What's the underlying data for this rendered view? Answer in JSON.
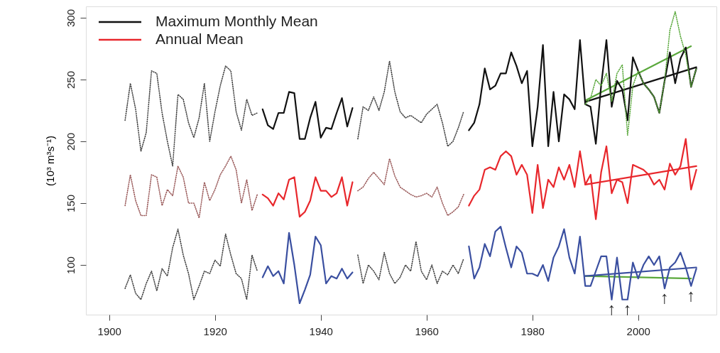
{
  "chart_data": {
    "type": "line",
    "ylabel": "(10³ m³s⁻¹)",
    "xlim": [
      1895.6,
      2014.8
    ],
    "ylim": [
      59.8,
      309.2
    ],
    "xticks": [
      1900,
      1920,
      1940,
      1960,
      1980,
      2000
    ],
    "yticks": [
      100,
      150,
      200,
      250,
      300
    ],
    "grid": false,
    "legend": "top left",
    "series": [
      {
        "name": "Maximum Monthly Mean",
        "color": "#111111",
        "line_style": "solid",
        "x": [
          1929,
          1930,
          1931,
          1932,
          1933,
          1934,
          1935,
          1936,
          1937,
          1938,
          1939,
          1940,
          1941,
          1942,
          1943,
          1944,
          1945,
          1946
        ],
        "values": [
          226,
          213,
          210,
          223,
          223,
          240,
          239,
          202,
          202,
          219,
          232,
          203,
          211,
          210,
          223,
          235,
          212,
          227
        ]
      },
      {
        "name": "Annual Mean",
        "color": "#e8272c",
        "line_style": "solid",
        "x": [
          1929,
          1930,
          1931,
          1932,
          1933,
          1934,
          1935,
          1936,
          1937,
          1938,
          1939,
          1940,
          1941,
          1942,
          1943,
          1944,
          1945,
          1946
        ],
        "values": [
          157,
          154,
          148,
          158,
          153,
          169,
          171,
          139,
          143,
          152,
          171,
          160,
          160,
          155,
          158,
          171,
          148,
          167
        ]
      },
      {
        "color": "#3a4fa0",
        "line_style": "solid",
        "x": [
          1929,
          1930,
          1931,
          1932,
          1933,
          1934,
          1935,
          1936,
          1937,
          1938,
          1939,
          1940,
          1941,
          1942,
          1943,
          1944,
          1945,
          1946
        ],
        "values": [
          90,
          99,
          91,
          95,
          85,
          126,
          100,
          69,
          80,
          92,
          123,
          116,
          85,
          91,
          89,
          97,
          89,
          94
        ]
      },
      {
        "color": "#444444",
        "line_style": "dotted",
        "x": [
          1903,
          1904,
          1905,
          1906,
          1907,
          1908,
          1909,
          1910,
          1911,
          1912,
          1913,
          1914,
          1915,
          1916,
          1917,
          1918,
          1919,
          1920,
          1921,
          1922,
          1923,
          1924,
          1925,
          1926,
          1927,
          1928
        ],
        "values": [
          217,
          247,
          226,
          192,
          207,
          257,
          255,
          223,
          200,
          180,
          238,
          234,
          215,
          203,
          219,
          247,
          200,
          224,
          245,
          261,
          257,
          224,
          209,
          234,
          221,
          223
        ]
      },
      {
        "color": "#9a5a5a",
        "line_style": "dotted",
        "x": [
          1903,
          1904,
          1905,
          1906,
          1907,
          1908,
          1909,
          1910,
          1911,
          1912,
          1913,
          1914,
          1915,
          1916,
          1917,
          1918,
          1919,
          1920,
          1921,
          1922,
          1923,
          1924,
          1925,
          1926,
          1927,
          1928
        ],
        "values": [
          148,
          173,
          152,
          140,
          140,
          173,
          171,
          148,
          161,
          156,
          180,
          171,
          150,
          150,
          138,
          167,
          152,
          161,
          173,
          180,
          188,
          177,
          150,
          169,
          144,
          157
        ]
      },
      {
        "color": "#444444",
        "line_style": "dotted",
        "x": [
          1903,
          1904,
          1905,
          1906,
          1907,
          1908,
          1909,
          1910,
          1911,
          1912,
          1913,
          1914,
          1915,
          1916,
          1917,
          1918,
          1919,
          1920,
          1921,
          1922,
          1923,
          1924,
          1925,
          1926,
          1927,
          1928
        ],
        "values": [
          81,
          92,
          77,
          72,
          85,
          95,
          79,
          97,
          91,
          114,
          129,
          108,
          93,
          72,
          83,
          95,
          93,
          104,
          99,
          125,
          108,
          93,
          89,
          72,
          108,
          95
        ]
      },
      {
        "color": "#444444",
        "line_style": "dotted",
        "x": [
          1947,
          1948,
          1949,
          1950,
          1951,
          1952,
          1953,
          1954,
          1955,
          1956,
          1957,
          1958,
          1959,
          1960,
          1961,
          1962,
          1963,
          1964,
          1965,
          1966,
          1967
        ],
        "values": [
          202,
          228,
          225,
          236,
          225,
          240,
          265,
          240,
          224,
          219,
          221,
          218,
          215,
          222,
          226,
          230,
          215,
          196,
          200,
          211,
          224
        ]
      },
      {
        "color": "#9a5a5a",
        "line_style": "dotted",
        "x": [
          1947,
          1948,
          1949,
          1950,
          1951,
          1952,
          1953,
          1954,
          1955,
          1956,
          1957,
          1958,
          1959,
          1960,
          1961,
          1962,
          1963,
          1964,
          1965,
          1966,
          1967
        ],
        "values": [
          160,
          163,
          170,
          175,
          170,
          165,
          186,
          172,
          163,
          160,
          157,
          155,
          156,
          158,
          155,
          163,
          150,
          140,
          143,
          147,
          157
        ]
      },
      {
        "color": "#444444",
        "line_style": "dotted",
        "x": [
          1947,
          1948,
          1949,
          1950,
          1951,
          1952,
          1953,
          1954,
          1955,
          1956,
          1957,
          1958,
          1959,
          1960,
          1961,
          1962,
          1963,
          1964,
          1965,
          1966,
          1967
        ],
        "values": [
          108,
          85,
          100,
          95,
          88,
          110,
          93,
          85,
          90,
          100,
          95,
          119,
          95,
          88,
          100,
          85,
          95,
          92,
          100,
          93,
          105
        ]
      },
      {
        "color": "#5aa83c",
        "line_style": "dotted",
        "x": [
          1990,
          1991,
          1992,
          1993,
          1994,
          1995,
          1996,
          1997,
          1998,
          1999,
          2000,
          2001,
          2002,
          2003,
          2004,
          2005,
          2006,
          2007,
          2008,
          2009,
          2010,
          2011
        ],
        "values": [
          230,
          235,
          250,
          245,
          255,
          232,
          255,
          262,
          205,
          245,
          257,
          247,
          242,
          236,
          223,
          249,
          290,
          305,
          285,
          270,
          244,
          259
        ]
      },
      {
        "color": "#111111",
        "line_style": "solid",
        "x": [
          1968,
          1969,
          1970,
          1971,
          1972,
          1973,
          1974,
          1975,
          1976,
          1977,
          1978,
          1979,
          1980,
          1981,
          1982,
          1983,
          1984,
          1985,
          1986,
          1987,
          1988,
          1989,
          1990,
          1991,
          1992,
          1993,
          1994,
          1995,
          1996,
          1997,
          1998,
          1999,
          2000,
          2001,
          2002,
          2003,
          2004,
          2005,
          2006,
          2007,
          2008,
          2009,
          2010,
          2011
        ],
        "values": [
          209,
          215,
          230,
          259,
          242,
          245,
          255,
          255,
          272,
          261,
          247,
          257,
          196,
          228,
          278,
          196,
          240,
          200,
          238,
          234,
          226,
          282,
          230,
          228,
          198,
          245,
          282,
          228,
          249,
          242,
          217,
          268,
          257,
          247,
          242,
          236,
          223,
          249,
          272,
          247,
          267,
          276,
          244,
          259
        ]
      },
      {
        "color": "#e8272c",
        "line_style": "solid",
        "x": [
          1968,
          1969,
          1970,
          1971,
          1972,
          1973,
          1974,
          1975,
          1976,
          1977,
          1978,
          1979,
          1980,
          1981,
          1982,
          1983,
          1984,
          1985,
          1986,
          1987,
          1988,
          1989,
          1990,
          1991,
          1992,
          1993,
          1994,
          1995,
          1996,
          1997,
          1998,
          1999,
          2000,
          2001,
          2002,
          2003,
          2004,
          2005,
          2006,
          2007,
          2008,
          2009,
          2010,
          2011
        ],
        "values": [
          148,
          156,
          161,
          177,
          179,
          177,
          188,
          192,
          188,
          173,
          181,
          173,
          142,
          181,
          146,
          169,
          163,
          179,
          169,
          181,
          163,
          192,
          165,
          173,
          137,
          175,
          196,
          158,
          169,
          167,
          150,
          181,
          179,
          177,
          173,
          165,
          169,
          161,
          182,
          173,
          180,
          202,
          161,
          177
        ]
      },
      {
        "color": "#3a4fa0",
        "line_style": "solid",
        "x": [
          1968,
          1969,
          1970,
          1971,
          1972,
          1973,
          1974,
          1975,
          1976,
          1977,
          1978,
          1979,
          1980,
          1981,
          1982,
          1983,
          1984,
          1985,
          1986,
          1987,
          1988,
          1989,
          1990,
          1991,
          1992,
          1993,
          1994,
          1995,
          1996,
          1997,
          1998,
          1999,
          2000,
          2001,
          2002,
          2003,
          2004,
          2005,
          2006,
          2007,
          2008,
          2009,
          2010,
          2011
        ],
        "values": [
          115,
          89,
          98,
          117,
          107,
          127,
          131,
          114,
          98,
          115,
          110,
          93,
          93,
          91,
          100,
          87,
          106,
          115,
          129,
          106,
          93,
          123,
          83,
          83,
          95,
          107,
          107,
          72,
          106,
          72,
          72,
          102,
          89,
          100,
          107,
          100,
          107,
          81,
          98,
          102,
          110,
          98,
          83,
          97
        ]
      },
      {
        "color": "#5aa83c",
        "line_style": "solid",
        "x": [
          1990,
          2010
        ],
        "values": [
          233,
          277
        ]
      },
      {
        "color": "#111111",
        "line_style": "solid",
        "x": [
          1990,
          2011
        ],
        "values": [
          232,
          260
        ]
      },
      {
        "color": "#e8272c",
        "line_style": "solid",
        "x": [
          1990,
          2011
        ],
        "values": [
          165,
          180
        ]
      },
      {
        "color": "#3a4fa0",
        "line_style": "solid",
        "x": [
          1990,
          2011
        ],
        "values": [
          91,
          98
        ]
      },
      {
        "color": "#5aa83c",
        "line_style": "solid",
        "x": [
          1990,
          2010
        ],
        "values": [
          91,
          89
        ]
      }
    ],
    "annotations": [
      {
        "text": "↑",
        "x": 1995,
        "y": 72
      },
      {
        "text": "↑",
        "x": 1998,
        "y": 72
      },
      {
        "text": "↑",
        "x": 2005,
        "y": 81
      },
      {
        "text": "↑",
        "x": 2010,
        "y": 83
      }
    ]
  }
}
